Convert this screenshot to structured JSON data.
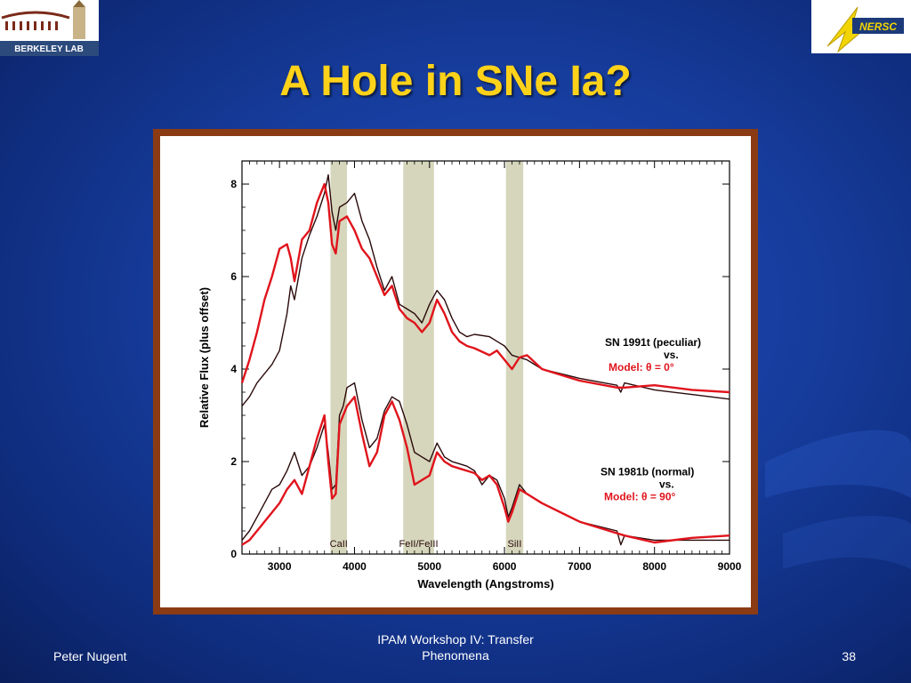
{
  "slide": {
    "title": "A Hole in SNe Ia?",
    "logos": {
      "left": "BERKELEY LAB",
      "right": "NERSC"
    },
    "footer": {
      "author": "Peter Nugent",
      "event": "IPAM Workshop IV: Transfer Phenomena",
      "page_number": "38"
    }
  },
  "colors": {
    "background": "#163c9c",
    "title": "#ffd21a",
    "frame": "#8b3b14",
    "model_red": "#e0141c",
    "observed_dark": "#2a0a0a",
    "band": "#d6d6bc"
  },
  "chart_data": {
    "type": "line",
    "xlabel": "Wavelength (Angstroms)",
    "ylabel": "Relative Flux (plus offset)",
    "xlim": [
      2500,
      9000
    ],
    "ylim": [
      0,
      8.5
    ],
    "xticks": [
      3000,
      4000,
      5000,
      6000,
      7000,
      8000,
      9000
    ],
    "xtick_labels": [
      "3000",
      "4000",
      "5000",
      "6000",
      "7000",
      "8000",
      "9000"
    ],
    "yticks": [
      0,
      2,
      4,
      6,
      8
    ],
    "ytick_labels": [
      "0",
      "2",
      "4",
      "6",
      "8"
    ],
    "bands": [
      {
        "label": "CaII",
        "from": 3680,
        "to": 3900
      },
      {
        "label": "FeII/FeIII",
        "from": 4650,
        "to": 5060
      },
      {
        "label": "SiII",
        "from": 6020,
        "to": 6250
      }
    ],
    "annotations": [
      {
        "lines": [
          "SN 1991t (peculiar)",
          "vs.",
          "Model: θ = 0°"
        ]
      },
      {
        "lines": [
          "SN 1981b (normal)",
          "vs.",
          "Model: θ = 90°"
        ]
      }
    ],
    "series": [
      {
        "color": "#2a0a0a",
        "x": [
          2500,
          2600,
          2700,
          2800,
          2900,
          3000,
          3100,
          3150,
          3200,
          3300,
          3400,
          3500,
          3600,
          3650,
          3700,
          3750,
          3800,
          3900,
          4000,
          4100,
          4200,
          4300,
          4400,
          4500,
          4600,
          4700,
          4800,
          4900,
          5000,
          5100,
          5200,
          5300,
          5400,
          5500,
          5600,
          5800,
          5900,
          6000,
          6100,
          6200,
          6300,
          6500,
          7000,
          7500,
          7550,
          7600,
          8000,
          8500,
          9000
        ],
        "values": [
          3.2,
          3.4,
          3.7,
          3.9,
          4.1,
          4.4,
          5.2,
          5.8,
          5.5,
          6.4,
          6.9,
          7.3,
          7.8,
          8.2,
          7.4,
          7.0,
          7.5,
          7.6,
          7.8,
          7.2,
          6.8,
          6.2,
          5.7,
          6.0,
          5.4,
          5.3,
          5.2,
          5.0,
          5.4,
          5.7,
          5.5,
          5.1,
          4.8,
          4.7,
          4.75,
          4.7,
          4.6,
          4.5,
          4.3,
          4.25,
          4.2,
          4.0,
          3.8,
          3.65,
          3.5,
          3.7,
          3.55,
          3.45,
          3.35
        ]
      },
      {
        "color": "#e0141c",
        "x": [
          2500,
          2600,
          2700,
          2800,
          2900,
          3000,
          3100,
          3150,
          3200,
          3300,
          3400,
          3500,
          3600,
          3650,
          3700,
          3750,
          3800,
          3900,
          4000,
          4100,
          4200,
          4300,
          4400,
          4500,
          4600,
          4700,
          4800,
          4900,
          5000,
          5100,
          5200,
          5300,
          5400,
          5500,
          5600,
          5800,
          5900,
          6000,
          6100,
          6200,
          6300,
          6500,
          7000,
          7500,
          7600,
          8000,
          8500,
          9000
        ],
        "values": [
          3.7,
          4.2,
          4.8,
          5.5,
          6.0,
          6.6,
          6.7,
          6.4,
          5.9,
          6.8,
          7.0,
          7.6,
          8.0,
          7.6,
          6.7,
          6.5,
          7.2,
          7.3,
          7.0,
          6.6,
          6.4,
          6.0,
          5.6,
          5.8,
          5.3,
          5.1,
          5.0,
          4.8,
          5.0,
          5.5,
          5.2,
          4.8,
          4.6,
          4.5,
          4.45,
          4.3,
          4.4,
          4.2,
          4.0,
          4.25,
          4.3,
          4.0,
          3.75,
          3.6,
          3.6,
          3.65,
          3.55,
          3.5
        ]
      },
      {
        "color": "#2a0a0a",
        "x": [
          2500,
          2600,
          2700,
          2800,
          2900,
          3000,
          3100,
          3200,
          3300,
          3400,
          3500,
          3600,
          3650,
          3700,
          3750,
          3800,
          3850,
          3900,
          4000,
          4100,
          4200,
          4300,
          4400,
          4500,
          4600,
          4700,
          4800,
          4900,
          5000,
          5100,
          5200,
          5300,
          5400,
          5500,
          5600,
          5700,
          5800,
          5900,
          6000,
          6050,
          6100,
          6200,
          6300,
          6500,
          7000,
          7500,
          7550,
          7600,
          8000,
          8500,
          9000
        ],
        "values": [
          0.3,
          0.5,
          0.8,
          1.1,
          1.4,
          1.5,
          1.8,
          2.2,
          1.7,
          1.9,
          2.3,
          2.8,
          2.2,
          1.4,
          1.5,
          3.0,
          3.2,
          3.6,
          3.7,
          2.9,
          2.3,
          2.5,
          3.1,
          3.4,
          3.3,
          2.8,
          2.2,
          2.1,
          2.0,
          2.4,
          2.1,
          2.0,
          1.95,
          1.9,
          1.8,
          1.5,
          1.7,
          1.6,
          1.2,
          0.8,
          1.0,
          1.5,
          1.3,
          1.1,
          0.7,
          0.5,
          0.2,
          0.4,
          0.3,
          0.3,
          0.3
        ]
      },
      {
        "color": "#e0141c",
        "x": [
          2500,
          2600,
          2700,
          2800,
          2900,
          3000,
          3100,
          3200,
          3300,
          3400,
          3500,
          3600,
          3650,
          3700,
          3750,
          3800,
          3850,
          3900,
          4000,
          4100,
          4200,
          4300,
          4400,
          4500,
          4600,
          4700,
          4800,
          4900,
          5000,
          5100,
          5200,
          5300,
          5400,
          5500,
          5600,
          5700,
          5800,
          5900,
          6000,
          6050,
          6100,
          6200,
          6300,
          6500,
          7000,
          7500,
          7600,
          8000,
          8500,
          9000
        ],
        "values": [
          0.2,
          0.3,
          0.5,
          0.7,
          0.9,
          1.1,
          1.4,
          1.6,
          1.3,
          1.9,
          2.5,
          3.0,
          2.0,
          1.2,
          1.3,
          2.8,
          3.0,
          3.2,
          3.4,
          2.6,
          1.9,
          2.2,
          3.0,
          3.3,
          2.9,
          2.3,
          1.5,
          1.6,
          1.7,
          2.2,
          2.0,
          1.9,
          1.85,
          1.8,
          1.75,
          1.6,
          1.7,
          1.5,
          1.0,
          0.7,
          0.9,
          1.4,
          1.3,
          1.1,
          0.7,
          0.45,
          0.4,
          0.25,
          0.35,
          0.4
        ]
      }
    ]
  }
}
